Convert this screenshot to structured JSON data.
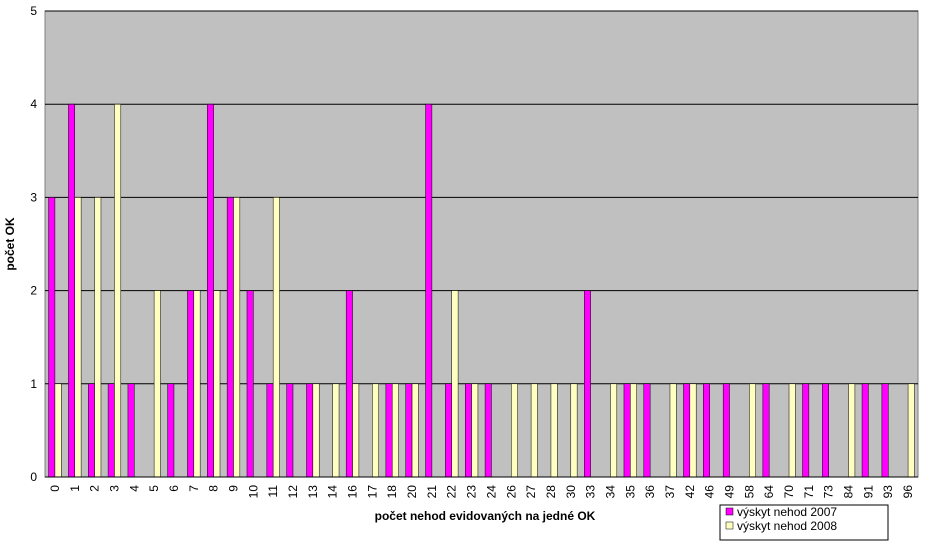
{
  "chart_data": {
    "type": "bar",
    "x_label": "počet nehod evidovaných na jedné OK",
    "y_label": "počet OK",
    "categories": [
      "0",
      "1",
      "2",
      "3",
      "4",
      "5",
      "6",
      "7",
      "8",
      "9",
      "10",
      "11",
      "12",
      "13",
      "14",
      "16",
      "17",
      "18",
      "20",
      "21",
      "22",
      "23",
      "24",
      "26",
      "27",
      "28",
      "30",
      "33",
      "34",
      "35",
      "36",
      "37",
      "42",
      "46",
      "49",
      "58",
      "64",
      "70",
      "71",
      "73",
      "84",
      "91",
      "93",
      "96"
    ],
    "series": [
      {
        "name": "výskyt nehod 2007",
        "color": "#ff00ff",
        "values": [
          3,
          4,
          1,
          1,
          1,
          0,
          1,
          2,
          4,
          3,
          2,
          1,
          1,
          1,
          0,
          2,
          0,
          1,
          1,
          4,
          1,
          1,
          1,
          0,
          0,
          0,
          0,
          2,
          0,
          1,
          1,
          0,
          1,
          1,
          1,
          0,
          1,
          0,
          1,
          1,
          0,
          1,
          1,
          0
        ]
      },
      {
        "name": "výskyt nehod 2008",
        "color": "#ffffc0",
        "values": [
          1,
          3,
          3,
          4,
          0,
          2,
          0,
          2,
          2,
          3,
          0,
          3,
          0,
          1,
          1,
          1,
          1,
          1,
          1,
          0,
          2,
          1,
          0,
          1,
          1,
          1,
          1,
          0,
          1,
          1,
          0,
          1,
          1,
          0,
          0,
          1,
          0,
          1,
          0,
          0,
          1,
          0,
          0,
          1
        ]
      }
    ],
    "ylim": [
      0,
      5
    ],
    "yticks": [
      0,
      1,
      2,
      3,
      4,
      5
    ],
    "grid": true
  }
}
